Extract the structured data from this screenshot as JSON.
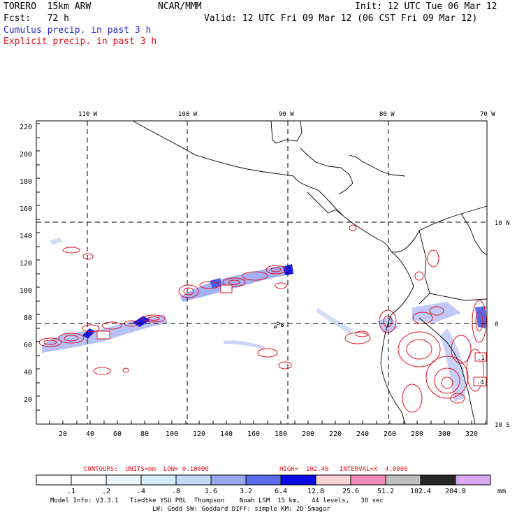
{
  "header": {
    "model": "TORERO  15km ARW",
    "org": "NCAR/MMM",
    "init": "Init: 12 UTC Tue 06 Mar 12",
    "fcst": "Fcst:   72 h",
    "valid": "Valid: 12 UTC Fri 09 Mar 12 (06 CST Fri 09 Mar 12)",
    "cumulus": "Cumulus precip. in past 3 h",
    "explicit": "Explicit precip. in past 3 h"
  },
  "axes": {
    "x_ticks": [
      "20",
      "40",
      "60",
      "80",
      "100",
      "120",
      "140",
      "160",
      "180",
      "200",
      "220",
      "240",
      "260",
      "280",
      "300",
      "320"
    ],
    "y_ticks": [
      "220",
      "200",
      "180",
      "160",
      "140",
      "120",
      "100",
      "80",
      "60",
      "40",
      "20"
    ],
    "lon_labels": [
      "110 W",
      "100 W",
      "90 W",
      "80 W",
      "70 W"
    ],
    "lat_labels": [
      "10 N",
      "0",
      "10 S"
    ]
  },
  "boxes": [
    ".1",
    ".4"
  ],
  "contours": {
    "label": "CONTOURS:  UNITS=mm  LOW= 0.10000",
    "high": "HIGH=  102.40",
    "interval": "INTERVAL=X  4.0000"
  },
  "colorbar": {
    "labels": [
      ".1",
      ".2",
      ".4",
      ".8",
      "1.6",
      "3.2",
      "6.4",
      "12.8",
      "25.6",
      "51.2",
      "102.4",
      "204.8"
    ],
    "unit": "mm",
    "colors": [
      "#ffffff",
      "#ffffff",
      "#eef6ff",
      "#d8ecfb",
      "#c4daf8",
      "#9aa8f0",
      "#5a6ae8",
      "#0a0ae6",
      "#fbd2d6",
      "#f28cb4",
      "#bebebe",
      "#282828",
      "#d8a8f0"
    ]
  },
  "footer": {
    "line1": "Model Info: V3.3.1   Tiedtke YSU PBL  Thompson    Noah LSM  15 km,   44 levels,   38 sec",
    "line2": "LW: Godd SW: Goddard DIFF: simple KM: 2D Smagor"
  }
}
